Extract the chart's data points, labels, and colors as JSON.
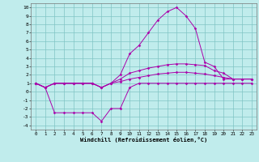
{
  "xlabel": "Windchill (Refroidissement éolien,°C)",
  "background_color": "#c0ecec",
  "grid_color": "#80c4c4",
  "line_color": "#aa00aa",
  "x_values": [
    0,
    1,
    2,
    3,
    4,
    5,
    6,
    7,
    8,
    9,
    10,
    11,
    12,
    13,
    14,
    15,
    16,
    17,
    18,
    19,
    20,
    21,
    22,
    23
  ],
  "xlim": [
    -0.5,
    23.5
  ],
  "ylim": [
    -4.5,
    10.5
  ],
  "yticks": [
    -4,
    -3,
    -2,
    -1,
    0,
    1,
    2,
    3,
    4,
    5,
    6,
    7,
    8,
    9,
    10
  ],
  "xticks": [
    0,
    1,
    2,
    3,
    4,
    5,
    6,
    7,
    8,
    9,
    10,
    11,
    12,
    13,
    14,
    15,
    16,
    17,
    18,
    19,
    20,
    21,
    22,
    23
  ],
  "curve_peak": [
    1.0,
    0.5,
    1.0,
    1.0,
    1.0,
    1.0,
    1.0,
    0.5,
    1.0,
    2.0,
    4.5,
    5.5,
    7.0,
    8.5,
    9.5,
    10.0,
    9.0,
    7.5,
    3.5,
    3.0,
    1.5,
    1.5,
    1.5,
    1.5
  ],
  "curve_high": [
    1.0,
    0.5,
    1.0,
    1.0,
    1.0,
    1.0,
    1.0,
    0.5,
    1.0,
    1.5,
    2.2,
    2.5,
    2.8,
    3.0,
    3.2,
    3.3,
    3.3,
    3.2,
    3.1,
    2.5,
    2.2,
    1.5,
    1.5,
    1.5
  ],
  "curve_mid": [
    1.0,
    0.5,
    1.0,
    1.0,
    1.0,
    1.0,
    1.0,
    0.5,
    1.0,
    1.2,
    1.5,
    1.7,
    1.9,
    2.1,
    2.2,
    2.3,
    2.3,
    2.2,
    2.1,
    1.9,
    1.7,
    1.5,
    1.5,
    1.5
  ],
  "curve_low": [
    1.0,
    0.5,
    -2.5,
    -2.5,
    -2.5,
    -2.5,
    -2.5,
    -3.5,
    -2.0,
    -2.0,
    0.5,
    1.0,
    1.0,
    1.0,
    1.0,
    1.0,
    1.0,
    1.0,
    1.0,
    1.0,
    1.0,
    1.0,
    1.0,
    1.0
  ]
}
